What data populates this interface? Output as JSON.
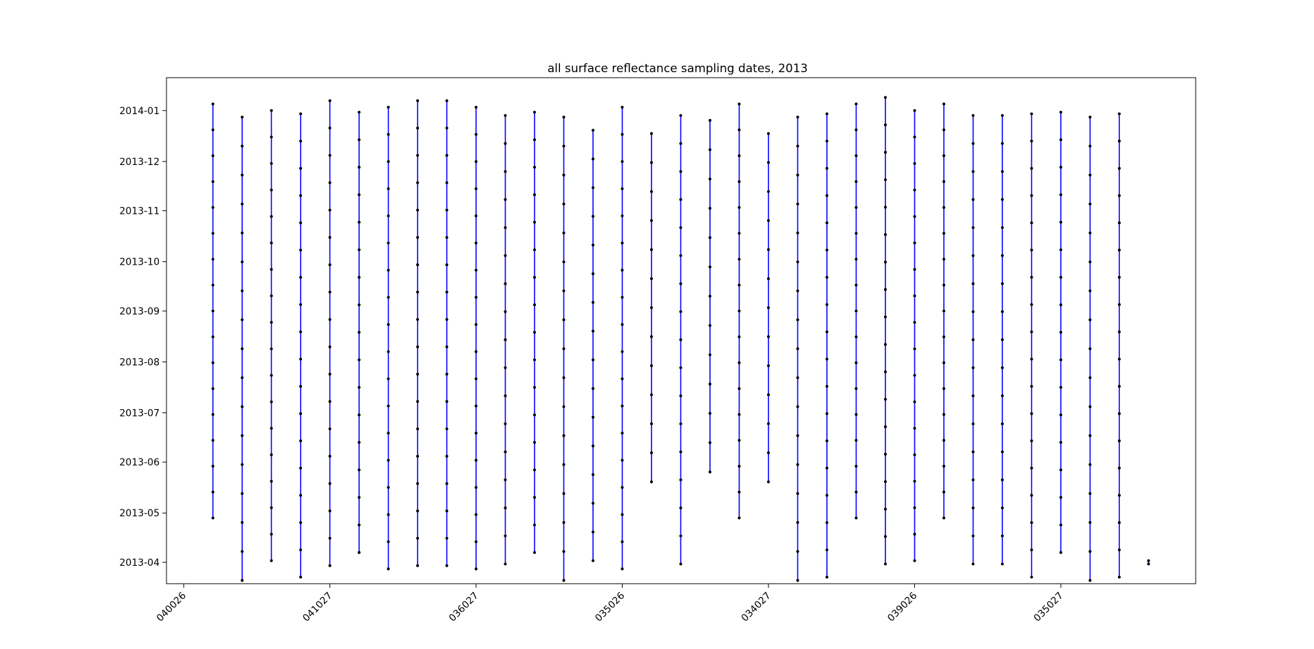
{
  "chart_data": {
    "type": "scatter",
    "title": "all surface reflectance sampling dates, 2013",
    "xlabel": "",
    "ylabel": "",
    "x_tick_labels": [
      "040026",
      "041027",
      "036027",
      "035026",
      "034027",
      "039026",
      "035027"
    ],
    "y_tick_labels": [
      "2013-04",
      "2013-05",
      "2013-06",
      "2013-07",
      "2013-08",
      "2013-09",
      "2013-10",
      "2013-11",
      "2013-12",
      "2014-01"
    ],
    "ylim": [
      "2013-03-19",
      "2014-01-21"
    ],
    "grid": false,
    "line_color": "#0000ff",
    "marker_color": "#000000",
    "series": [
      {
        "first": "2013-04-28",
        "last": "2014-01-05",
        "n": 17
      },
      {
        "first": "2013-03-21",
        "last": "2013-12-28",
        "n": 17
      },
      {
        "first": "2013-04-02",
        "last": "2014-01-01",
        "n": 18
      },
      {
        "first": "2013-03-23",
        "last": "2013-12-30",
        "n": 18
      },
      {
        "first": "2013-03-30",
        "last": "2014-01-07",
        "n": 18
      },
      {
        "first": "2013-04-07",
        "last": "2013-12-31",
        "n": 17
      },
      {
        "first": "2013-03-28",
        "last": "2014-01-03",
        "n": 18
      },
      {
        "first": "2013-03-30",
        "last": "2014-01-07",
        "n": 18
      },
      {
        "first": "2013-03-30",
        "last": "2014-01-07",
        "n": 18
      },
      {
        "first": "2013-03-28",
        "last": "2014-01-03",
        "n": 18
      },
      {
        "first": "2013-03-31",
        "last": "2013-12-29",
        "n": 17
      },
      {
        "first": "2013-04-07",
        "last": "2013-12-31",
        "n": 17
      },
      {
        "first": "2013-03-21",
        "last": "2013-12-28",
        "n": 17
      },
      {
        "first": "2013-04-02",
        "last": "2013-12-20",
        "n": 16
      },
      {
        "first": "2013-03-28",
        "last": "2014-01-03",
        "n": 18
      },
      {
        "first": "2013-05-20",
        "last": "2013-12-18",
        "n": 13
      },
      {
        "first": "2013-03-31",
        "last": "2013-12-29",
        "n": 17
      },
      {
        "first": "2013-05-26",
        "last": "2013-12-26",
        "n": 13
      },
      {
        "first": "2013-04-28",
        "last": "2014-01-05",
        "n": 17
      },
      {
        "first": "2013-05-20",
        "last": "2013-12-18",
        "n": 13
      },
      {
        "first": "2013-03-21",
        "last": "2013-12-28",
        "n": 17
      },
      {
        "first": "2013-03-23",
        "last": "2013-12-30",
        "n": 18
      },
      {
        "first": "2013-04-28",
        "last": "2014-01-05",
        "n": 17
      },
      {
        "first": "2013-03-31",
        "last": "2014-01-09",
        "n": 18
      },
      {
        "first": "2013-04-02",
        "last": "2014-01-01",
        "n": 18
      },
      {
        "first": "2013-04-28",
        "last": "2014-01-05",
        "n": 17
      },
      {
        "first": "2013-03-31",
        "last": "2013-12-29",
        "n": 17
      },
      {
        "first": "2013-03-31",
        "last": "2013-12-29",
        "n": 17
      },
      {
        "first": "2013-03-23",
        "last": "2013-12-30",
        "n": 18
      },
      {
        "first": "2013-04-07",
        "last": "2013-12-31",
        "n": 17
      },
      {
        "first": "2013-03-21",
        "last": "2013-12-28",
        "n": 17
      },
      {
        "first": "2013-03-23",
        "last": "2013-12-30",
        "n": 18
      },
      {
        "first": "2013-03-31",
        "last": "2013-04-02",
        "n": 2
      }
    ]
  }
}
